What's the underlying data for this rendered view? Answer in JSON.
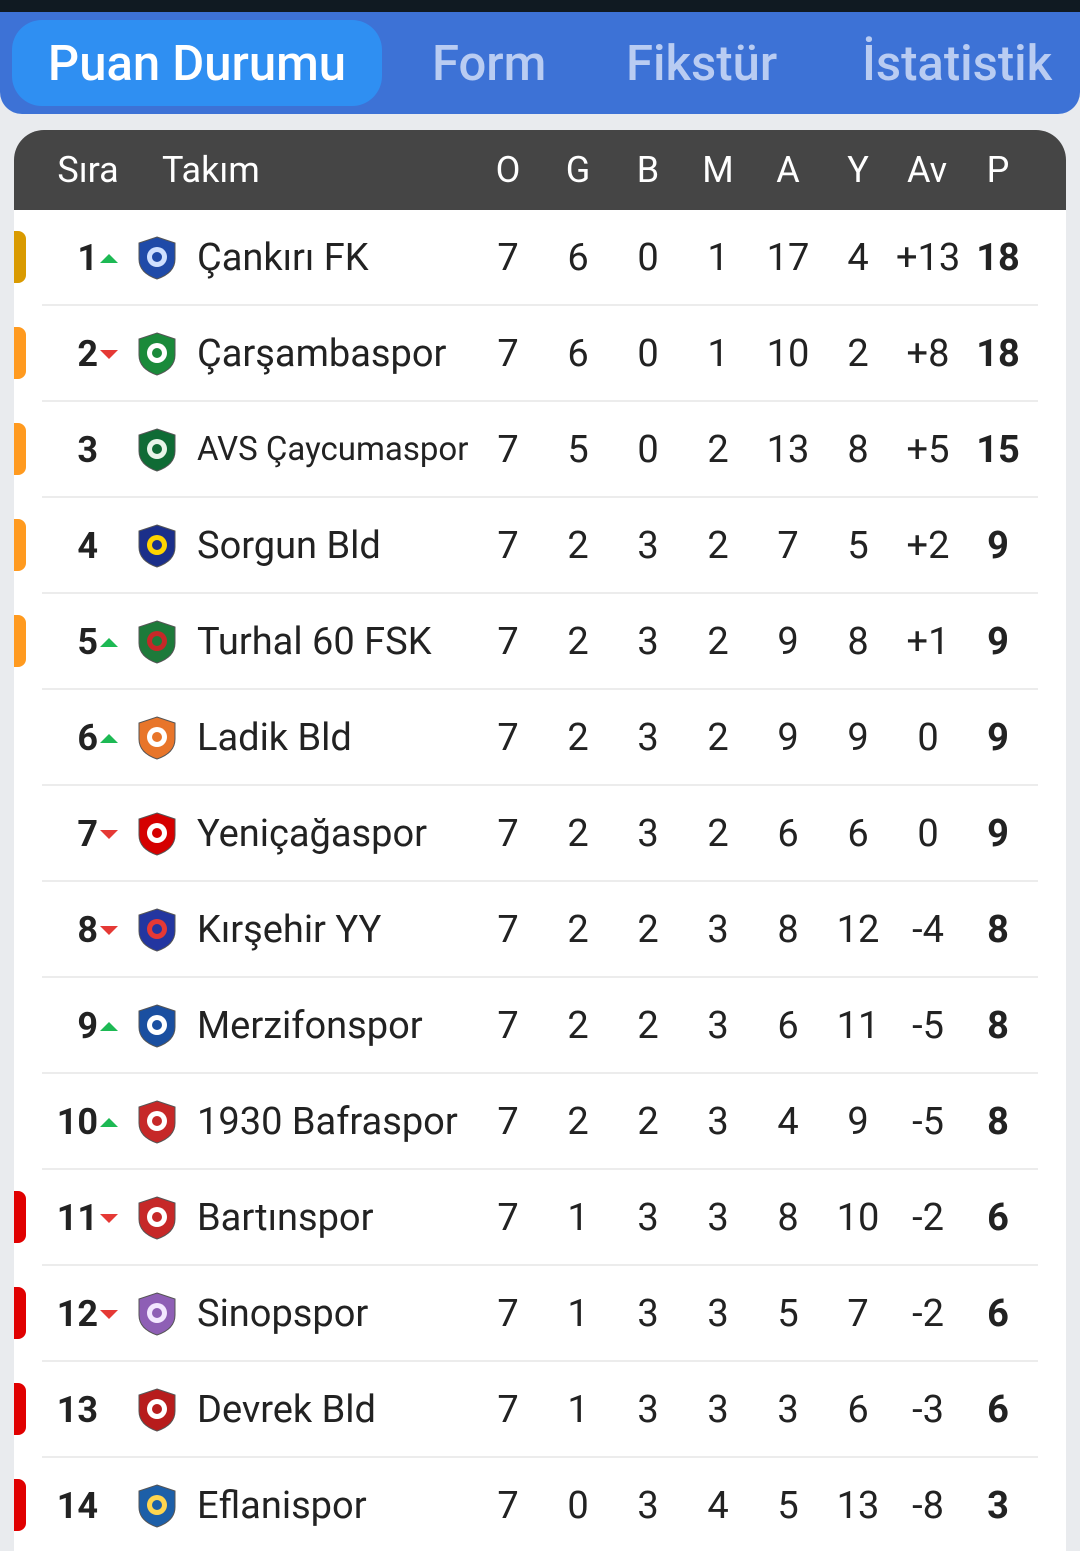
{
  "tabs": [
    {
      "label": "Puan Durumu",
      "active": true
    },
    {
      "label": "Form",
      "active": false
    },
    {
      "label": "Fikstür",
      "active": false
    },
    {
      "label": "İstatistik",
      "active": false
    }
  ],
  "colors": {
    "accent": "#2f8ff2",
    "tabbar": "#3d72d6",
    "header": "#454545",
    "zone_champion": "#d99a00",
    "zone_playoff": "#ff9a1f",
    "zone_relegation": "#e00000",
    "trend_up": "#1db954",
    "trend_down": "#e53935"
  },
  "table": {
    "headers": {
      "rank": "Sıra",
      "team": "Takım",
      "played": "O",
      "won": "G",
      "drawn": "B",
      "lost": "M",
      "goals_for": "A",
      "goals_against": "Y",
      "goal_diff": "Av",
      "points": "P"
    },
    "rows": [
      {
        "rank": "1",
        "trend": "up",
        "zone": "champion",
        "team": "Çankırı FK",
        "logo_icon": "cankiri-fk-logo-icon",
        "played": "7",
        "won": "6",
        "drawn": "0",
        "lost": "1",
        "goals_for": "17",
        "goals_against": "4",
        "goal_diff": "+13",
        "points": "18"
      },
      {
        "rank": "2",
        "trend": "down",
        "zone": "playoff",
        "team": "Çarşambaspor",
        "logo_icon": "carsambaspor-logo-icon",
        "played": "7",
        "won": "6",
        "drawn": "0",
        "lost": "1",
        "goals_for": "10",
        "goals_against": "2",
        "goal_diff": "+8",
        "points": "18"
      },
      {
        "rank": "3",
        "trend": "none",
        "zone": "playoff",
        "team": "AVS Çaycumaspor",
        "logo_icon": "caycumaspor-logo-icon",
        "played": "7",
        "won": "5",
        "drawn": "0",
        "lost": "2",
        "goals_for": "13",
        "goals_against": "8",
        "goal_diff": "+5",
        "points": "15"
      },
      {
        "rank": "4",
        "trend": "none",
        "zone": "playoff",
        "team": "Sorgun Bld",
        "logo_icon": "sorgun-logo-icon",
        "played": "7",
        "won": "2",
        "drawn": "3",
        "lost": "2",
        "goals_for": "7",
        "goals_against": "5",
        "goal_diff": "+2",
        "points": "9"
      },
      {
        "rank": "5",
        "trend": "up",
        "zone": "playoff",
        "team": "Turhal 60 FSK",
        "logo_icon": "turhal-logo-icon",
        "played": "7",
        "won": "2",
        "drawn": "3",
        "lost": "2",
        "goals_for": "9",
        "goals_against": "8",
        "goal_diff": "+1",
        "points": "9"
      },
      {
        "rank": "6",
        "trend": "up",
        "zone": "none",
        "team": "Ladik Bld",
        "logo_icon": "ladik-logo-icon",
        "played": "7",
        "won": "2",
        "drawn": "3",
        "lost": "2",
        "goals_for": "9",
        "goals_against": "9",
        "goal_diff": "0",
        "points": "9"
      },
      {
        "rank": "7",
        "trend": "down",
        "zone": "none",
        "team": "Yeniçağaspor",
        "logo_icon": "yenicagaspor-logo-icon",
        "played": "7",
        "won": "2",
        "drawn": "3",
        "lost": "2",
        "goals_for": "6",
        "goals_against": "6",
        "goal_diff": "0",
        "points": "9"
      },
      {
        "rank": "8",
        "trend": "down",
        "zone": "none",
        "team": "Kırşehir YY",
        "logo_icon": "kirsehir-logo-icon",
        "played": "7",
        "won": "2",
        "drawn": "2",
        "lost": "3",
        "goals_for": "8",
        "goals_against": "12",
        "goal_diff": "-4",
        "points": "8"
      },
      {
        "rank": "9",
        "trend": "up",
        "zone": "none",
        "team": "Merzifonspor",
        "logo_icon": "merzifonspor-logo-icon",
        "played": "7",
        "won": "2",
        "drawn": "2",
        "lost": "3",
        "goals_for": "6",
        "goals_against": "11",
        "goal_diff": "-5",
        "points": "8"
      },
      {
        "rank": "10",
        "trend": "up",
        "zone": "none",
        "team": "1930 Bafraspor",
        "logo_icon": "bafraspor-logo-icon",
        "played": "7",
        "won": "2",
        "drawn": "2",
        "lost": "3",
        "goals_for": "4",
        "goals_against": "9",
        "goal_diff": "-5",
        "points": "8"
      },
      {
        "rank": "11",
        "trend": "down",
        "zone": "relegation",
        "team": "Bartınspor",
        "logo_icon": "bartinspor-logo-icon",
        "played": "7",
        "won": "1",
        "drawn": "3",
        "lost": "3",
        "goals_for": "8",
        "goals_against": "10",
        "goal_diff": "-2",
        "points": "6"
      },
      {
        "rank": "12",
        "trend": "down",
        "zone": "relegation",
        "team": "Sinopspor",
        "logo_icon": "sinopspor-logo-icon",
        "played": "7",
        "won": "1",
        "drawn": "3",
        "lost": "3",
        "goals_for": "5",
        "goals_against": "7",
        "goal_diff": "-2",
        "points": "6"
      },
      {
        "rank": "13",
        "trend": "none",
        "zone": "relegation",
        "team": "Devrek Bld",
        "logo_icon": "devrek-logo-icon",
        "played": "7",
        "won": "1",
        "drawn": "3",
        "lost": "3",
        "goals_for": "3",
        "goals_against": "6",
        "goal_diff": "-3",
        "points": "6"
      },
      {
        "rank": "14",
        "trend": "none",
        "zone": "relegation",
        "team": "Eflanispor",
        "logo_icon": "eflanispor-logo-icon",
        "played": "7",
        "won": "0",
        "drawn": "3",
        "lost": "4",
        "goals_for": "5",
        "goals_against": "13",
        "goal_diff": "-8",
        "points": "3"
      }
    ]
  }
}
